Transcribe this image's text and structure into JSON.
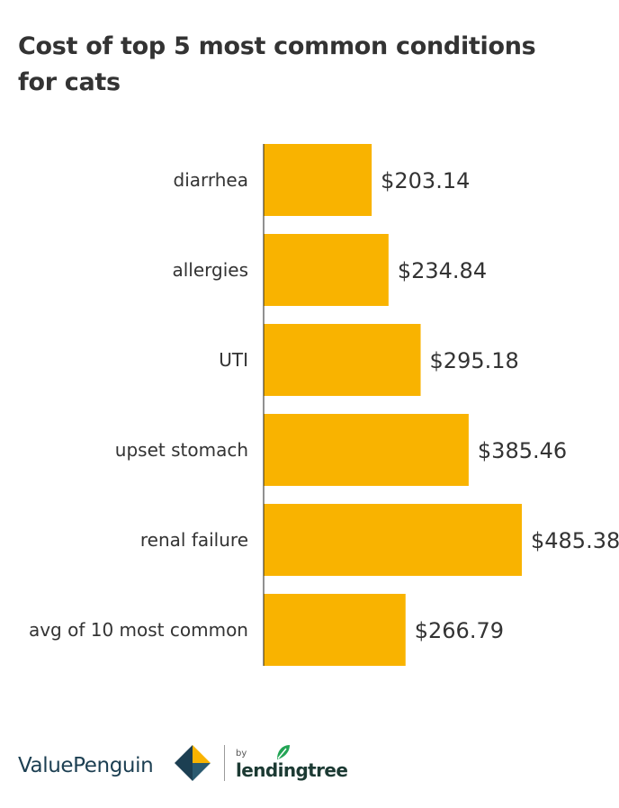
{
  "chart_data": {
    "type": "bar",
    "orientation": "horizontal",
    "title": "Cost of top 5 most common conditions for cats",
    "categories": [
      "diarrhea",
      "allergies",
      "UTI",
      "upset stomach",
      "renal failure",
      "avg of 10 most common"
    ],
    "values": [
      203.14,
      234.84,
      295.18,
      385.46,
      485.38,
      266.79
    ],
    "value_labels": [
      "$203.14",
      "$234.84",
      "$295.18",
      "$385.46",
      "$485.38",
      "$266.79"
    ],
    "xlim": [
      0,
      485.38
    ],
    "grid": false,
    "bar_color": "#f9b300"
  },
  "footer": {
    "brand": "ValuePenguin",
    "by": "by",
    "partner": "lendingtree",
    "brand_color": "#1c3f52",
    "accent_color": "#f9b300",
    "leaf_color": "#23a455"
  }
}
